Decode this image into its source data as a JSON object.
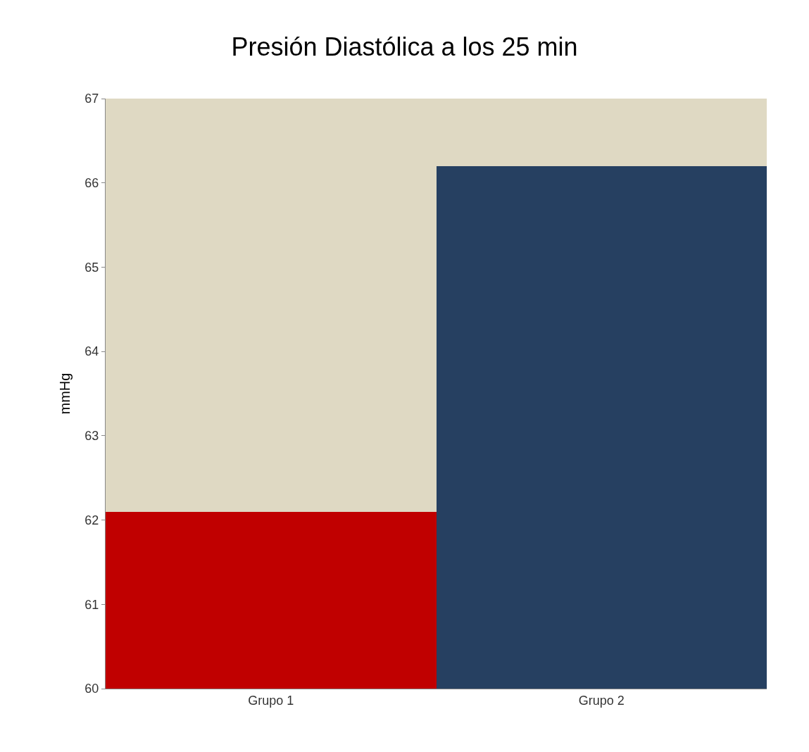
{
  "chart_data": {
    "type": "bar",
    "title": "Presión Diastólica a los 25 min",
    "ylabel": "mmHg",
    "categories": [
      "Grupo 1",
      "Grupo 2"
    ],
    "values": [
      62.1,
      66.2
    ],
    "colors": [
      "#c00000",
      "#264061"
    ],
    "ylim": [
      60,
      67
    ],
    "yticks": [
      60,
      61,
      62,
      63,
      64,
      65,
      66,
      67
    ],
    "grid": false
  }
}
